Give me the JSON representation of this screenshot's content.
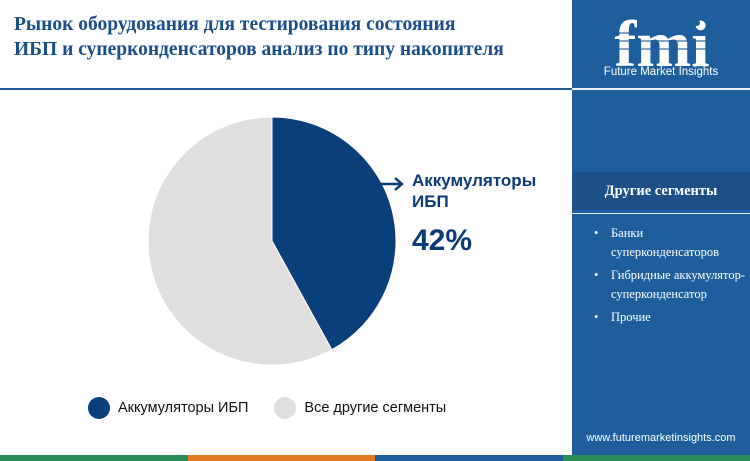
{
  "header": {
    "title_lines": [
      "Рынок оборудования для тестирования состояния",
      "ИБП и суперконденсаторов анализ по типу накопителя"
    ]
  },
  "chart_data": {
    "type": "pie",
    "categories": [
      "Аккумуляторы ИБП",
      "Все другие сегменты"
    ],
    "values": [
      42,
      58
    ],
    "unit": "%",
    "colors": [
      "#0b3f7c",
      "#dfdfe0"
    ],
    "start_angle_deg": 0,
    "direction": "clockwise",
    "legend_position": "bottom",
    "callout": {
      "label_lines": [
        "Аккумуляторы",
        "ИБП"
      ],
      "value": "42%"
    }
  },
  "legend": {
    "items": [
      {
        "label": "Аккумуляторы ИБП",
        "color": "#0b3f7c"
      },
      {
        "label": "Все другие сегменты",
        "color": "#dfdfe0"
      }
    ]
  },
  "sidebar": {
    "brand_name": "Future Market Insights",
    "logo_text": "fmi",
    "segments_heading": "Другие сегменты",
    "segments": [
      {
        "bullet": "•",
        "label": "Банки суперконденсаторов"
      },
      {
        "bullet": "•",
        "label": "Гибридные аккумулятор-суперконденсатор"
      },
      {
        "bullet": "•",
        "label": "Прочие"
      }
    ],
    "website": "www.futuremarketinsights.com",
    "colors": {
      "panel": "#1e5e9c",
      "heading_band": "#1b4f86"
    }
  },
  "bottom_bar": {
    "colors": [
      "#2a8c56",
      "#e07b24",
      "#1e5e9c",
      "#2a8c56"
    ]
  }
}
